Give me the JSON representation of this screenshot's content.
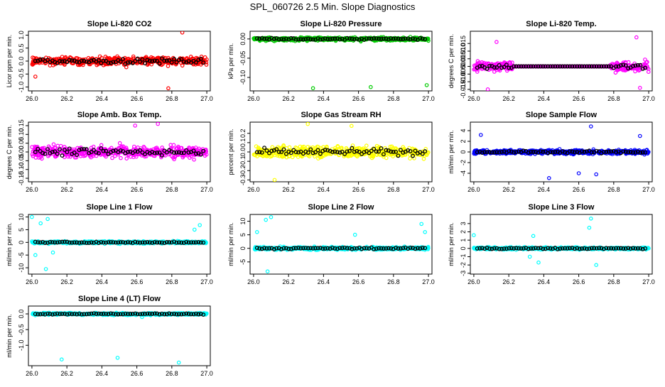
{
  "figure_title": "SPL_060726  2.5 Min. Slope Diagnostics",
  "chart_data": [
    {
      "type": "scatter",
      "title": "Slope Li-820 CO2",
      "ylabel": "Licor ppm per min.",
      "xlim": [
        25.98,
        27.02
      ],
      "xticks": [
        26.0,
        26.2,
        26.4,
        26.6,
        26.8,
        27.0
      ],
      "ylim": [
        -1.15,
        1.15
      ],
      "yticks": [
        -1.0,
        -0.5,
        0.0,
        0.5,
        1.0
      ],
      "series_color": "#ff0000",
      "base_spread": 0.3,
      "pattern": "uniform",
      "outliers": [
        [
          26.86,
          1.1
        ],
        [
          26.78,
          -1.05
        ],
        [
          26.02,
          -0.6
        ]
      ]
    },
    {
      "type": "scatter",
      "title": "Slope Li-820 Pressure",
      "ylabel": "kPa per min.",
      "xlim": [
        25.98,
        27.02
      ],
      "xticks": [
        26.0,
        26.2,
        26.4,
        26.6,
        26.8,
        27.0
      ],
      "ylim": [
        -0.135,
        0.02
      ],
      "yticks": [
        -0.1,
        -0.05,
        0.0
      ],
      "series_color": "#00cc00",
      "base_spread": 0.008,
      "pattern": "uniform",
      "outliers": [
        [
          26.34,
          -0.128
        ],
        [
          26.67,
          -0.125
        ],
        [
          26.99,
          -0.12
        ]
      ]
    },
    {
      "type": "scatter",
      "title": "Slope Li-820 Temp.",
      "ylabel": "degrees C per min.",
      "xlim": [
        25.98,
        27.02
      ],
      "xticks": [
        26.0,
        26.2,
        26.4,
        26.6,
        26.8,
        27.0
      ],
      "ylim": [
        -0.016,
        0.023
      ],
      "yticks": [
        -0.015,
        -0.01,
        -0.005,
        0.0,
        0.005,
        0.01,
        0.015
      ],
      "series_color": "#ff00ff",
      "base_spread": 0.006,
      "pattern": "flat_middle",
      "flat_range": [
        26.22,
        26.78
      ],
      "outliers": [
        [
          26.13,
          0.016
        ],
        [
          26.08,
          -0.015
        ],
        [
          26.93,
          0.019
        ],
        [
          26.95,
          -0.014
        ]
      ]
    },
    {
      "type": "scatter",
      "title": "Slope Amb. Box Temp.",
      "ylabel": "degrees C per min.",
      "xlim": [
        25.98,
        27.02
      ],
      "xticks": [
        26.0,
        26.2,
        26.4,
        26.6,
        26.8,
        27.0
      ],
      "ylim": [
        -0.17,
        0.17
      ],
      "yticks": [
        -0.15,
        -0.1,
        -0.05,
        0.0,
        0.05,
        0.1,
        0.15
      ],
      "series_color": "#ff00ff",
      "base_spread": 0.06,
      "pattern": "uniform",
      "outliers": [
        [
          26.72,
          0.16
        ],
        [
          26.59,
          0.15
        ]
      ]
    },
    {
      "type": "scatter",
      "title": "Slope Gas Stream RH",
      "ylabel": "percent per min.",
      "xlim": [
        25.98,
        27.02
      ],
      "xticks": [
        26.0,
        26.2,
        26.4,
        26.6,
        26.8,
        27.0
      ],
      "ylim": [
        -0.32,
        0.32
      ],
      "yticks": [
        -0.3,
        -0.2,
        -0.1,
        0.0,
        0.1,
        0.2
      ],
      "series_color": "#ffff00",
      "base_spread": 0.11,
      "pattern": "uniform",
      "outliers": [
        [
          26.12,
          -0.3
        ],
        [
          26.31,
          0.3
        ],
        [
          26.56,
          0.28
        ]
      ]
    },
    {
      "type": "scatter",
      "title": "Slope Sample Flow",
      "ylabel": "ml/min per min.",
      "xlim": [
        25.98,
        27.02
      ],
      "xticks": [
        26.0,
        26.2,
        26.4,
        26.6,
        26.8,
        27.0
      ],
      "ylim": [
        -5.6,
        5.6
      ],
      "yticks": [
        -4,
        -2,
        0,
        2,
        4
      ],
      "series_color": "#0000ff",
      "base_spread": 0.7,
      "pattern": "uniform",
      "outliers": [
        [
          26.67,
          4.8
        ],
        [
          26.7,
          -4.2
        ],
        [
          26.6,
          -4.0
        ],
        [
          26.95,
          3.0
        ],
        [
          26.04,
          3.2
        ],
        [
          26.43,
          -4.9
        ]
      ]
    },
    {
      "type": "scatter",
      "title": "Slope Line 1 Flow",
      "ylabel": "ml/min per min.",
      "xlim": [
        25.98,
        27.02
      ],
      "xticks": [
        26.0,
        26.2,
        26.4,
        26.6,
        26.8,
        27.0
      ],
      "ylim": [
        -12.5,
        11
      ],
      "yticks": [
        -10,
        -5,
        0,
        5,
        10
      ],
      "series_color": "#00ffff",
      "base_spread": 0.8,
      "pattern": "uniform",
      "outliers": [
        [
          26.0,
          10
        ],
        [
          26.08,
          -10.5
        ],
        [
          26.05,
          7.5
        ],
        [
          26.09,
          9.2
        ],
        [
          26.96,
          6.8
        ],
        [
          26.93,
          5.0
        ],
        [
          26.02,
          -5.0
        ],
        [
          26.12,
          -4.0
        ]
      ]
    },
    {
      "type": "scatter",
      "title": "Slope Line 2 Flow",
      "ylabel": "ml/min per min.",
      "xlim": [
        25.98,
        27.02
      ],
      "xticks": [
        26.0,
        26.2,
        26.4,
        26.6,
        26.8,
        27.0
      ],
      "ylim": [
        -9.5,
        12.5
      ],
      "yticks": [
        -5,
        0,
        5,
        10
      ],
      "series_color": "#00ffff",
      "base_spread": 1.0,
      "pattern": "uniform",
      "outliers": [
        [
          26.1,
          11.5
        ],
        [
          26.07,
          10.5
        ],
        [
          26.08,
          -8.5
        ],
        [
          26.02,
          6.0
        ],
        [
          26.58,
          5.0
        ],
        [
          26.96,
          9.0
        ],
        [
          26.98,
          6.0
        ]
      ]
    },
    {
      "type": "scatter",
      "title": "Slope Line 3 Flow",
      "ylabel": "ml/min per min.",
      "xlim": [
        25.98,
        27.02
      ],
      "xticks": [
        26.0,
        26.2,
        26.4,
        26.6,
        26.8,
        27.0
      ],
      "ylim": [
        -3.1,
        4.1
      ],
      "yticks": [
        -3,
        -2,
        -1,
        0,
        1,
        2,
        3
      ],
      "series_color": "#00ffff",
      "base_spread": 0.25,
      "pattern": "uniform",
      "outliers": [
        [
          26.34,
          1.5
        ],
        [
          26.37,
          -1.7
        ],
        [
          26.32,
          -1.0
        ],
        [
          26.67,
          3.6
        ],
        [
          26.7,
          -2.0
        ],
        [
          26.66,
          2.5
        ],
        [
          26.0,
          1.6
        ]
      ]
    },
    {
      "type": "scatter",
      "title": "Slope Line 4 (LT) Flow",
      "ylabel": "ml/min per min.",
      "xlim": [
        25.98,
        27.02
      ],
      "xticks": [
        26.0,
        26.2,
        26.4,
        26.6,
        26.8,
        27.0
      ],
      "ylim": [
        -1.65,
        0.25
      ],
      "yticks": [
        -1.0,
        -0.5,
        0.0
      ],
      "series_color": "#00ffff",
      "base_spread": 0.06,
      "pattern": "uniform",
      "outliers": [
        [
          26.17,
          -1.45
        ],
        [
          26.49,
          -1.4
        ],
        [
          26.84,
          -1.55
        ],
        [
          26.63,
          -0.1
        ]
      ]
    }
  ]
}
